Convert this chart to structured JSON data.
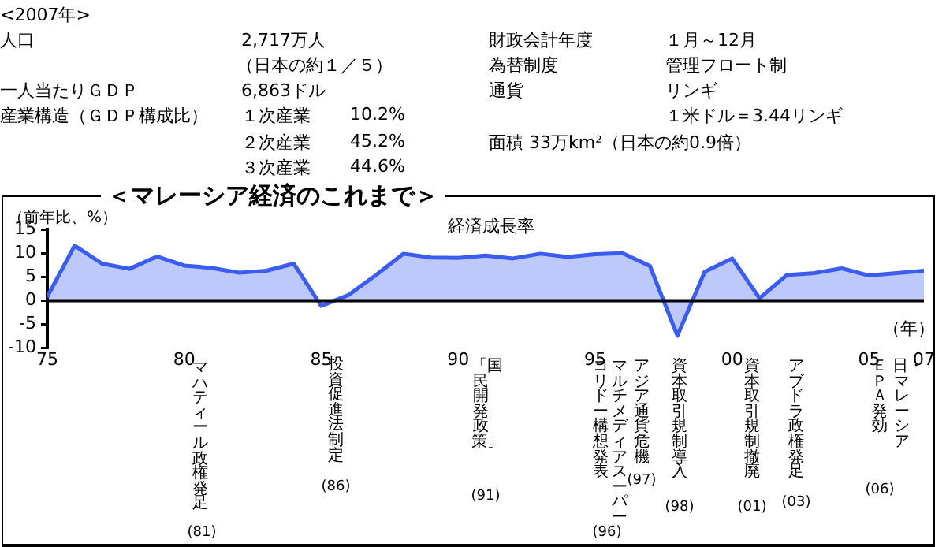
{
  "chart_data": [
    {
      "type": "other",
      "annotations": [
        "<2007年>",
        "人口",
        "2,717万人",
        "（日本の約１／５）",
        "財政会計年度",
        "１月～12月",
        "為替制度",
        "管理フロート制",
        "一人当たりＧＤＰ",
        "6,863ドル",
        "通貨",
        "リンギ",
        "産業構造（ＧＤＰ構成比）",
        "１次産業",
        "10.2%",
        "１米ドル＝3.44リンギ",
        "２次産業",
        "45.2%",
        "面積 33万km²（日本の約0.9倍）",
        "３次産業",
        "44.6%"
      ]
    },
    {
      "type": "area",
      "title": "＜マレーシア経済のこれまで＞",
      "subtitle": "経済成長率",
      "ylabel": "（前年比、%）",
      "xlabel": "（年）",
      "x": [
        1975,
        1976,
        1977,
        1978,
        1979,
        1980,
        1981,
        1982,
        1983,
        1984,
        1985,
        1986,
        1987,
        1988,
        1989,
        1990,
        1991,
        1992,
        1993,
        1994,
        1995,
        1996,
        1997,
        1998,
        1999,
        2000,
        2001,
        2002,
        2003,
        2004,
        2005,
        2006,
        2007
      ],
      "series": [
        {
          "color": "#3a5cf0",
          "values": [
            0.8,
            11.6,
            7.8,
            6.7,
            9.3,
            7.4,
            6.9,
            5.9,
            6.3,
            7.8,
            -1.1,
            1.2,
            5.4,
            9.9,
            9.1,
            9.0,
            9.5,
            8.9,
            9.9,
            9.2,
            9.8,
            10.0,
            7.3,
            -7.4,
            6.1,
            8.9,
            0.5,
            5.4,
            5.8,
            6.8,
            5.3,
            5.8,
            6.3
          ]
        }
      ],
      "xlim": [
        1975,
        2007
      ],
      "xticks": [
        {
          "value": 1975,
          "label": "75"
        },
        {
          "value": 1980,
          "label": "80"
        },
        {
          "value": 1985,
          "label": "85"
        },
        {
          "value": 1990,
          "label": "90"
        },
        {
          "value": 1995,
          "label": "95"
        },
        {
          "value": 2000,
          "label": "00"
        },
        {
          "value": 2005,
          "label": "05"
        },
        {
          "value": 2007,
          "label": "07"
        }
      ],
      "ylim": [
        -10,
        15
      ],
      "yticks": [
        -10,
        -5,
        0,
        5,
        10,
        15
      ],
      "ref_lines": [
        {
          "axis": "y",
          "value": 0,
          "color": "#000000"
        }
      ],
      "annotations": [
        "マハティール政権発足",
        "(81)",
        "投資促進法制定",
        "(86)",
        "「国民開発政策」",
        "(91)",
        "マルチメディアスーパー",
        "コリドー構想発表",
        "(96)",
        "アジア通貨危機",
        "(97)",
        "資本取引規制導入",
        "(98)",
        "資本取引規制撤廃",
        "(01)",
        "アブドラ政権発足",
        "(03)",
        "日・マレーシア",
        "ＥＰＡ発効",
        "(06)"
      ]
    }
  ]
}
